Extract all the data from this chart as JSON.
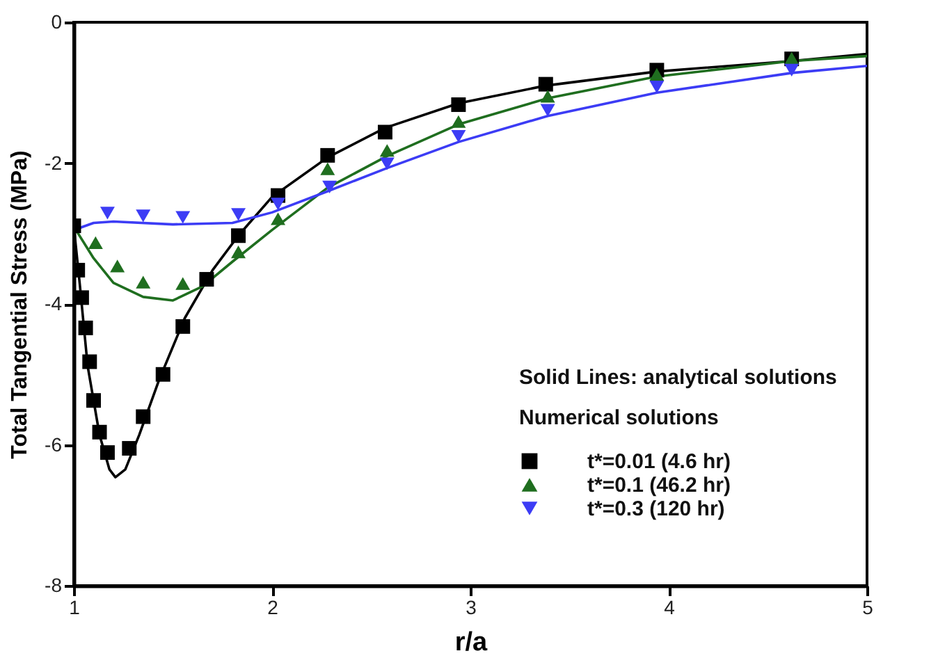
{
  "chart_data": {
    "type": "scatter",
    "xlabel": "r/a",
    "ylabel": "Total Tangential Stress (MPa)",
    "xlim": [
      1,
      5
    ],
    "ylim": [
      -8,
      0
    ],
    "xticks": [
      1,
      2,
      3,
      4,
      5
    ],
    "yticks": [
      -8,
      -6,
      -4,
      -2,
      0
    ],
    "grid": false,
    "legend": "bottom right",
    "legend_title": "Numerical solutions",
    "annotations": [
      "Solid Lines: analytical solutions"
    ],
    "series": [
      {
        "type": "line",
        "color": "#000000",
        "marker": "none",
        "line_style": "solid",
        "x": [
          1,
          1.03,
          1.07,
          1.13,
          1.18,
          1.21,
          1.26,
          1.33,
          1.43,
          1.56,
          1.7,
          1.83,
          2.0,
          2.28,
          2.57,
          2.94,
          3.38,
          3.94,
          4.62,
          5
        ],
        "values": [
          -2.89,
          -3.71,
          -4.88,
          -5.86,
          -6.35,
          -6.46,
          -6.35,
          -5.86,
          -5.08,
          -4.2,
          -3.52,
          -3.03,
          -2.48,
          -1.92,
          -1.5,
          -1.15,
          -0.9,
          -0.7,
          -0.55,
          -0.45
        ]
      },
      {
        "type": "line",
        "color": "#1f6e1f",
        "marker": "none",
        "line_style": "solid",
        "x": [
          1,
          1.1,
          1.2,
          1.35,
          1.5,
          1.65,
          1.8,
          2.0,
          2.28,
          2.58,
          2.94,
          3.39,
          3.94,
          4.62,
          5
        ],
        "values": [
          -2.9,
          -3.35,
          -3.7,
          -3.9,
          -3.95,
          -3.75,
          -3.4,
          -2.95,
          -2.35,
          -1.9,
          -1.45,
          -1.08,
          -0.77,
          -0.55,
          -0.48
        ]
      },
      {
        "type": "line",
        "color": "#3c3cf5",
        "marker": "none",
        "line_style": "solid",
        "x": [
          1,
          1.1,
          1.2,
          1.5,
          1.8,
          2.0,
          2.28,
          2.58,
          2.94,
          3.39,
          3.94,
          4.62,
          5
        ],
        "values": [
          -2.95,
          -2.85,
          -2.83,
          -2.87,
          -2.85,
          -2.7,
          -2.4,
          -2.07,
          -1.7,
          -1.33,
          -1.0,
          -0.72,
          -0.62
        ]
      },
      {
        "type": "scatter",
        "name": "t*=0.01 (4.6 hr)",
        "color": "#000000",
        "marker": "square",
        "x": [
          1,
          1.02,
          1.04,
          1.06,
          1.08,
          1.1,
          1.13,
          1.17,
          1.28,
          1.35,
          1.45,
          1.55,
          1.67,
          1.83,
          2.03,
          2.28,
          2.57,
          2.94,
          3.38,
          3.94,
          4.62
        ],
        "values": [
          -2.89,
          -3.52,
          -3.91,
          -4.34,
          -4.82,
          -5.37,
          -5.82,
          -6.11,
          -6.05,
          -5.6,
          -5.0,
          -4.32,
          -3.65,
          -3.03,
          -2.46,
          -1.89,
          -1.56,
          -1.17,
          -0.88,
          -0.68,
          -0.52
        ]
      },
      {
        "type": "scatter",
        "name": "t*=0.1 (46.2 hr)",
        "color": "#1f6e1f",
        "marker": "triangle",
        "x": [
          1.11,
          1.22,
          1.35,
          1.55,
          1.83,
          2.03,
          2.28,
          2.58,
          2.94,
          3.39,
          3.94,
          4.62
        ],
        "values": [
          -3.13,
          -3.46,
          -3.69,
          -3.71,
          -3.26,
          -2.79,
          -2.08,
          -1.82,
          -1.41,
          -1.05,
          -0.74,
          -0.51
        ]
      },
      {
        "type": "scatter",
        "name": "t*=0.3 (120 hr)",
        "color": "#3c3cf5",
        "marker": "triangle-down",
        "x": [
          1.17,
          1.35,
          1.55,
          1.83,
          2.03,
          2.29,
          2.58,
          2.94,
          3.39,
          3.94,
          4.62
        ],
        "values": [
          -2.71,
          -2.75,
          -2.77,
          -2.73,
          -2.58,
          -2.34,
          -2.01,
          -1.62,
          -1.25,
          -0.92,
          -0.68
        ]
      }
    ]
  }
}
